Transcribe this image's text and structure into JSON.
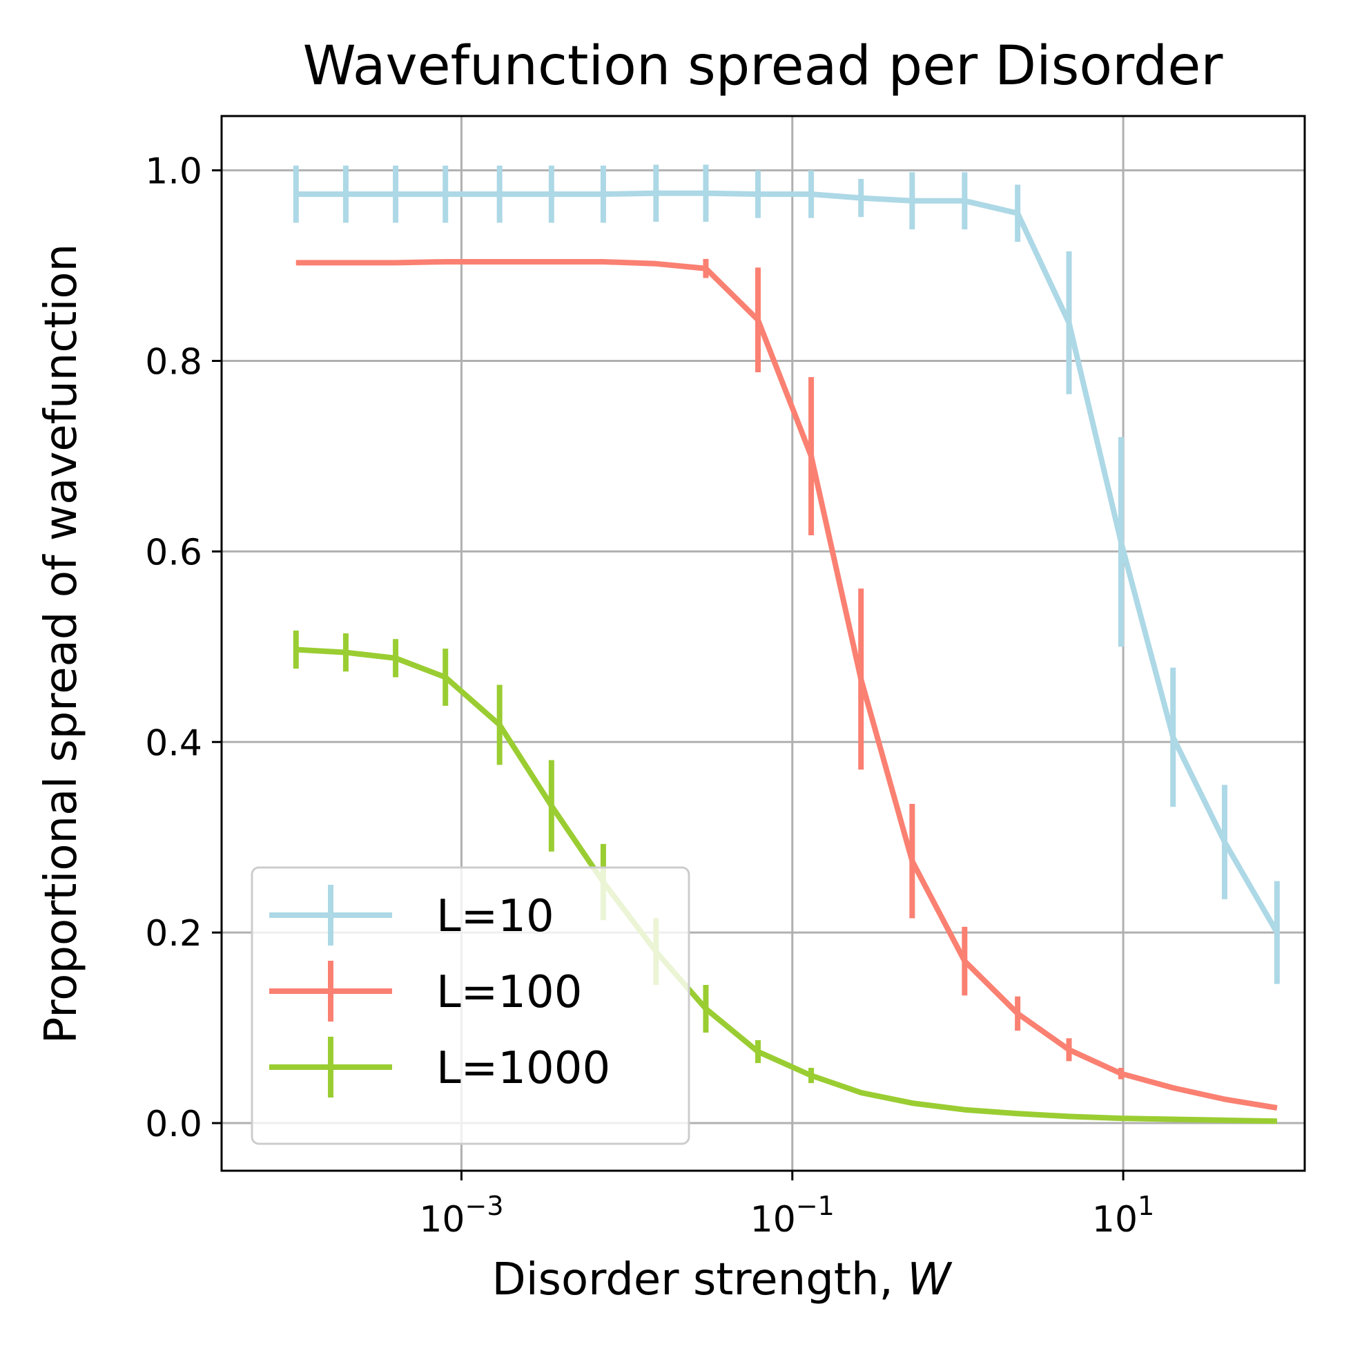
{
  "chart_data": {
    "type": "line",
    "title": "Wavefunction spread per Disorder",
    "xlabel_prefix": "Disorder strength, ",
    "xlabel_var": "W",
    "ylabel": "Proportional spread of wavefunction",
    "x_scale": "log",
    "xlim": [
      3.55e-05,
      125
    ],
    "ylim": [
      -0.05,
      1.057
    ],
    "grid": true,
    "legend_position": "lower-left",
    "x_ticks": [
      {
        "value": 0.001,
        "base": "10",
        "exp": "−3"
      },
      {
        "value": 0.1,
        "base": "10",
        "exp": "−1"
      },
      {
        "value": 10,
        "base": "10",
        "exp": "1"
      }
    ],
    "y_ticks": [
      "0.0",
      "0.2",
      "0.4",
      "0.6",
      "0.8",
      "1.0"
    ],
    "x": [
      0.0001,
      0.0002,
      0.0004,
      0.0008,
      0.0017,
      0.0035,
      0.0072,
      0.015,
      0.03,
      0.062,
      0.13,
      0.26,
      0.53,
      1.1,
      2.3,
      4.7,
      9.7,
      20,
      41,
      85
    ],
    "series": [
      {
        "name": "L=10",
        "color": "#add8e6",
        "values": [
          0.975,
          0.975,
          0.975,
          0.975,
          0.975,
          0.975,
          0.975,
          0.976,
          0.976,
          0.975,
          0.975,
          0.971,
          0.968,
          0.968,
          0.955,
          0.84,
          0.61,
          0.405,
          0.295,
          0.2
        ],
        "errors": [
          0.03,
          0.03,
          0.03,
          0.03,
          0.03,
          0.03,
          0.03,
          0.03,
          0.03,
          0.025,
          0.025,
          0.02,
          0.03,
          0.03,
          0.03,
          0.075,
          0.11,
          0.073,
          0.06,
          0.054
        ]
      },
      {
        "name": "L=100",
        "color": "#fa8072",
        "values": [
          0.903,
          0.903,
          0.903,
          0.904,
          0.904,
          0.904,
          0.904,
          0.902,
          0.897,
          0.843,
          0.7,
          0.466,
          0.275,
          0.17,
          0.115,
          0.077,
          0.052,
          0.037,
          0.025,
          0.016
        ],
        "errors": [
          0.0,
          0.0,
          0.0,
          0.0,
          0.0,
          0.0,
          0.0,
          0.0,
          0.01,
          0.055,
          0.083,
          0.095,
          0.06,
          0.036,
          0.018,
          0.012,
          0.006,
          0.0,
          0.0,
          0.0
        ]
      },
      {
        "name": "L=1000",
        "color": "#9acd32",
        "values": [
          0.497,
          0.494,
          0.488,
          0.468,
          0.418,
          0.333,
          0.253,
          0.18,
          0.12,
          0.075,
          0.05,
          0.032,
          0.021,
          0.014,
          0.01,
          0.007,
          0.005,
          0.004,
          0.003,
          0.002
        ],
        "errors": [
          0.02,
          0.02,
          0.02,
          0.03,
          0.042,
          0.048,
          0.04,
          0.035,
          0.025,
          0.012,
          0.008,
          0.0,
          0.0,
          0.0,
          0.0,
          0.0,
          0.0,
          0.0,
          0.0,
          0.0
        ]
      }
    ]
  }
}
